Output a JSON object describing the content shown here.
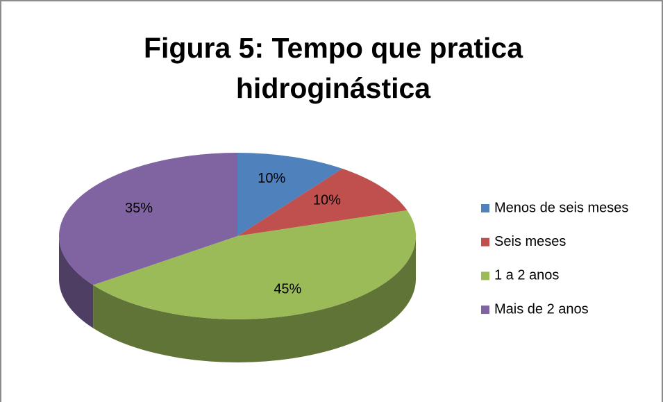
{
  "chart_data": {
    "type": "pie",
    "title": "Figura 5: Tempo que pratica hidroginástica",
    "categories": [
      "Menos de seis meses",
      "Seis meses",
      "1 a 2 anos",
      "Mais de 2 anos"
    ],
    "values": [
      10,
      10,
      45,
      35
    ],
    "value_labels": [
      "10%",
      "10%",
      "45%",
      "35%"
    ],
    "colors": [
      "#4f81bd",
      "#c0504d",
      "#9bbb59",
      "#8064a2"
    ],
    "legend": "right"
  }
}
